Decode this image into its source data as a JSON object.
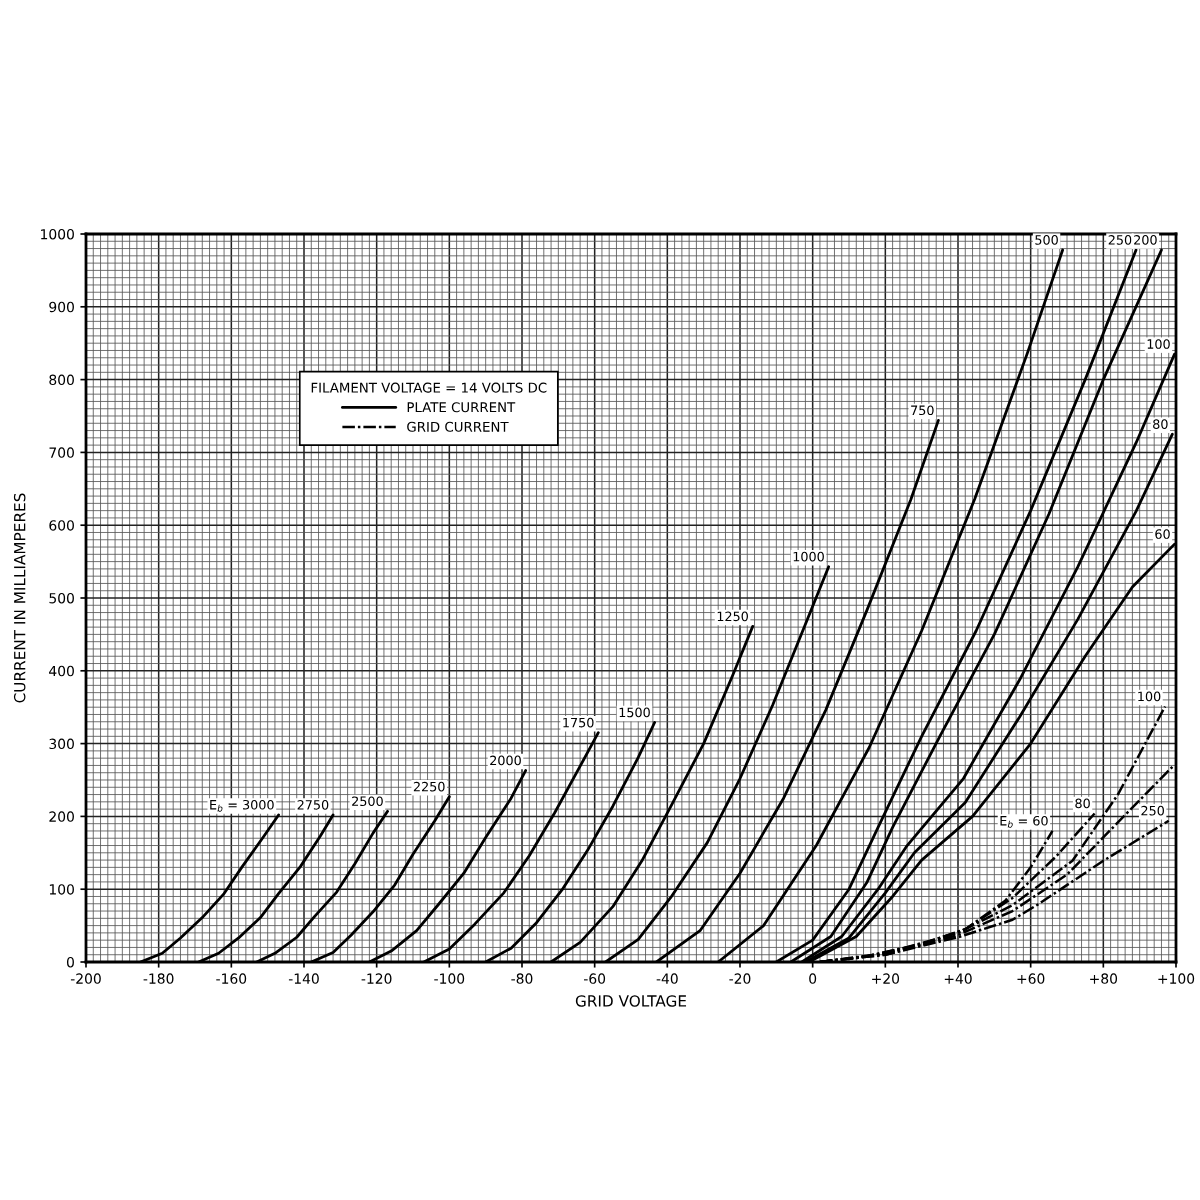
{
  "chart_data": {
    "type": "line",
    "xlabel": "GRID VOLTAGE",
    "ylabel": "CURRENT IN MILLIAMPERES",
    "xlim": [
      -200,
      100
    ],
    "ylim": [
      0,
      1000
    ],
    "xticks": [
      -200,
      -180,
      -160,
      -140,
      -120,
      -100,
      -80,
      -60,
      -40,
      -20,
      0,
      {
        "value": 20,
        "label": "+20"
      },
      {
        "value": 40,
        "label": "+40"
      },
      {
        "value": 60,
        "label": "+60"
      },
      {
        "value": 80,
        "label": "+80"
      },
      {
        "value": 100,
        "label": "+100"
      }
    ],
    "yticks": [
      0,
      100,
      200,
      300,
      400,
      500,
      600,
      700,
      800,
      900,
      1000
    ],
    "grid": true,
    "legend": "top left",
    "legend_title": "FILAMENT VOLTAGE = 14 VOLTS DC",
    "annotations": [
      {
        "text": "E$_{b}$ = 3000",
        "x": -147,
        "y": 202
      },
      {
        "text": "2750",
        "x": -132,
        "y": 202
      },
      {
        "text": "2500",
        "x": -117,
        "y": 207
      },
      {
        "text": "2250",
        "x": -100,
        "y": 227
      },
      {
        "text": "2000",
        "x": -79,
        "y": 263
      },
      {
        "text": "1750",
        "x": -59,
        "y": 315
      },
      {
        "text": "1500",
        "x": -43.5,
        "y": 329
      },
      {
        "text": "1250",
        "x": -16.5,
        "y": 461
      },
      {
        "text": "1000",
        "x": 4.4,
        "y": 543
      },
      {
        "text": "750",
        "x": 34.6,
        "y": 744
      },
      {
        "text": "500",
        "x": 68.8,
        "y": 978
      },
      {
        "text": "250",
        "x": 89,
        "y": 978
      },
      {
        "text": "200",
        "x": 96,
        "y": 978
      },
      {
        "text": "100",
        "x": 99.6,
        "y": 835
      },
      {
        "text": "80",
        "x": 99,
        "y": 725
      },
      {
        "text": "60",
        "x": 99.6,
        "y": 574
      },
      {
        "text": "E$_{b}$ = 60",
        "x": 66,
        "y": 180
      },
      {
        "text": "80",
        "x": 77.6,
        "y": 204
      },
      {
        "text": "100",
        "x": 97,
        "y": 351
      },
      {
        "text": "250",
        "x": 98,
        "y": 194
      }
    ],
    "series": [
      {
        "name": "PLATE CURRENT",
        "color": "#000000",
        "line_style": "solid",
        "x": [
          -185,
          -179,
          -174,
          -168,
          -162,
          -157,
          -151,
          -147
        ],
        "values": [
          0,
          12,
          33,
          61,
          94,
          131,
          173,
          202
        ]
      },
      {
        "color": "#000000",
        "line_style": "solid",
        "x": [
          -169,
          -163.5,
          -158,
          -152,
          -147,
          -141,
          -135.5,
          -132
        ],
        "values": [
          0,
          12,
          33,
          61,
          94,
          131,
          173,
          202
        ]
      },
      {
        "color": "#000000",
        "line_style": "solid",
        "x": [
          -153,
          -148,
          -142,
          -137,
          -131,
          -126,
          -121,
          -117
        ],
        "values": [
          0,
          12,
          34,
          63,
          96,
          135,
          177,
          207
        ]
      },
      {
        "color": "#000000",
        "line_style": "solid",
        "x": [
          -138,
          -132,
          -127,
          -121,
          -115,
          -110,
          -104,
          -100
        ],
        "values": [
          0,
          13,
          37,
          69,
          106,
          148,
          194,
          227
        ]
      },
      {
        "color": "#000000",
        "line_style": "solid",
        "x": [
          -122,
          -116,
          -109,
          -103,
          -96,
          -90,
          -83,
          -79
        ],
        "values": [
          0,
          15,
          43,
          79,
          122,
          171,
          225,
          263
        ]
      },
      {
        "color": "#000000",
        "line_style": "solid",
        "x": [
          -107,
          -100,
          -93,
          -85,
          -78,
          -71,
          -64,
          -59
        ],
        "values": [
          0,
          18,
          52,
          95,
          146,
          205,
          269,
          315
        ]
      },
      {
        "color": "#000000",
        "line_style": "solid",
        "x": [
          -90,
          -83,
          -76,
          -69,
          -62,
          -55,
          -48,
          -43.5
        ],
        "values": [
          0,
          19,
          54,
          99,
          153,
          214,
          281,
          329
        ]
      },
      {
        "color": "#000000",
        "line_style": "solid",
        "x": [
          -72,
          -64,
          -55,
          -47,
          -39,
          -30,
          -22,
          -16.5
        ],
        "values": [
          0,
          27,
          76,
          139,
          214,
          300,
          394,
          461
        ]
      },
      {
        "color": "#000000",
        "line_style": "solid",
        "x": [
          -57,
          -48,
          -39,
          -29,
          -20,
          -11,
          -2,
          4.4
        ],
        "values": [
          0,
          31,
          89,
          164,
          252,
          353,
          464,
          543
        ]
      },
      {
        "color": "#000000",
        "line_style": "solid",
        "x": [
          -43,
          -31,
          -20,
          -8,
          3.6,
          15,
          27,
          34.6
        ],
        "values": [
          0,
          43,
          122,
          225,
          346,
          484,
          635,
          744
        ]
      },
      {
        "color": "#000000",
        "line_style": "solid",
        "x": [
          -26,
          -13.5,
          1,
          15.6,
          30,
          44.6,
          59,
          68.8
        ],
        "values": [
          0,
          50,
          160,
          295,
          455,
          636,
          835,
          978
        ]
      },
      {
        "color": "#000000",
        "line_style": "solid",
        "x": [
          -10,
          0,
          10,
          18,
          30,
          45,
          60,
          75,
          89
        ],
        "values": [
          0,
          30,
          100,
          185,
          310,
          455,
          620,
          800,
          978
        ]
      },
      {
        "color": "#000000",
        "line_style": "solid",
        "x": [
          -6,
          5,
          15,
          22,
          35,
          50,
          65,
          80,
          96
        ],
        "values": [
          0,
          35,
          110,
          185,
          310,
          450,
          615,
          800,
          978
        ]
      },
      {
        "color": "#000000",
        "line_style": "solid",
        "x": [
          -3,
          8,
          18,
          26,
          41.5,
          57,
          73,
          89,
          99.6
        ],
        "values": [
          0,
          35,
          100,
          160,
          252,
          388,
          543,
          713,
          835
        ]
      },
      {
        "color": "#000000",
        "line_style": "solid",
        "x": [
          -2,
          10,
          20,
          28,
          42,
          57,
          73,
          89,
          99
        ],
        "values": [
          0,
          33,
          95,
          150,
          219,
          337,
          471,
          619,
          725
        ]
      },
      {
        "color": "#000000",
        "line_style": "solid",
        "x": [
          -1,
          12,
          22,
          30,
          44,
          60,
          75,
          88,
          99.6
        ],
        "values": [
          0,
          35,
          90,
          140,
          200,
          300,
          420,
          515,
          574
        ]
      },
      {
        "name": "GRID CURRENT",
        "color": "#000000",
        "line_style": "dashed",
        "x": [
          2,
          15,
          30,
          42,
          53,
          60,
          66
        ],
        "values": [
          0,
          8,
          25,
          45,
          84,
          130,
          180
        ]
      },
      {
        "color": "#000000",
        "line_style": "dashed",
        "x": [
          2,
          15,
          30,
          42,
          55,
          67,
          77.6
        ],
        "values": [
          0,
          8,
          24,
          45,
          88,
          145,
          204
        ]
      },
      {
        "color": "#000000",
        "line_style": "dashed",
        "x": [
          2,
          20,
          40,
          55,
          71.5,
          84,
          97
        ],
        "values": [
          0,
          12,
          40,
          78,
          139,
          230,
          351
        ]
      },
      {
        "color": "#000000",
        "line_style": "dashed",
        "x": [
          2,
          20,
          40,
          55,
          70,
          86,
          99
        ],
        "values": [
          0,
          10,
          37,
          70,
          120,
          202,
          268
        ]
      },
      {
        "color": "#000000",
        "line_style": "dashed",
        "x": [
          2,
          20,
          40,
          55,
          62,
          80,
          98
        ],
        "values": [
          0,
          10,
          34,
          58,
          79,
          139,
          194
        ]
      }
    ]
  }
}
